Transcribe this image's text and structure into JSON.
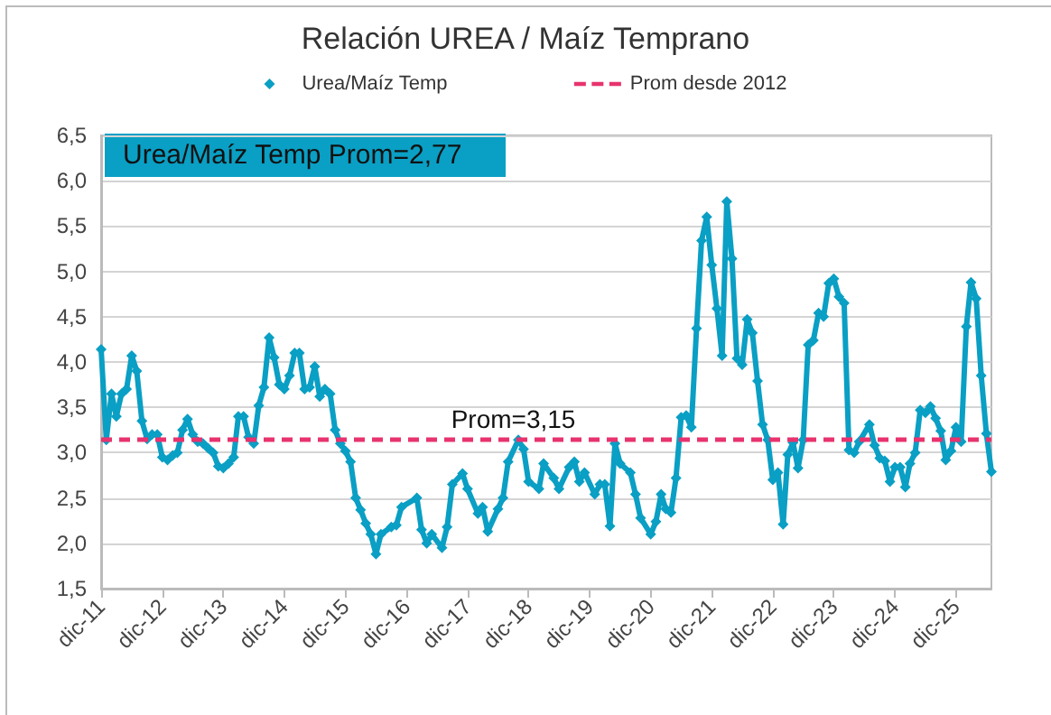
{
  "chart_data": {
    "type": "line",
    "title": "Relación UREA / Maíz Temprano",
    "x": [
      "2011-12",
      "2012-01",
      "2012-02",
      "2012-03",
      "2012-04",
      "2012-05",
      "2012-06",
      "2012-07",
      "2012-08",
      "2012-09",
      "2012-10",
      "2012-11",
      "2012-12",
      "2013-01",
      "2013-02",
      "2013-03",
      "2013-04",
      "2013-05",
      "2013-06",
      "2013-07",
      "2013-08",
      "2013-09",
      "2013-10",
      "2013-11",
      "2013-12",
      "2014-01",
      "2014-02",
      "2014-03",
      "2014-04",
      "2014-05",
      "2014-06",
      "2014-07",
      "2014-08",
      "2014-09",
      "2014-10",
      "2014-11",
      "2014-12",
      "2015-01",
      "2015-02",
      "2015-03",
      "2015-04",
      "2015-05",
      "2015-06",
      "2015-07",
      "2015-08",
      "2015-09",
      "2015-10",
      "2015-11",
      "2015-12",
      "2016-01",
      "2016-02",
      "2016-03",
      "2016-04",
      "2016-05",
      "2016-06",
      "2016-07",
      "2016-09",
      "2016-10",
      "2016-11",
      "2017-02",
      "2017-03",
      "2017-04",
      "2017-05",
      "2017-07",
      "2017-08",
      "2017-09",
      "2017-11",
      "2017-12",
      "2018-02",
      "2018-03",
      "2018-04",
      "2018-06",
      "2018-07",
      "2018-08",
      "2018-10",
      "2018-11",
      "2018-12",
      "2019-02",
      "2019-03",
      "2019-05",
      "2019-06",
      "2019-08",
      "2019-09",
      "2019-10",
      "2019-11",
      "2020-01",
      "2020-02",
      "2020-03",
      "2020-04",
      "2020-05",
      "2020-06",
      "2020-08",
      "2020-09",
      "2020-10",
      "2020-12",
      "2021-01",
      "2021-02",
      "2021-03",
      "2021-04",
      "2021-05",
      "2021-06",
      "2021-07",
      "2021-08",
      "2021-09",
      "2021-10",
      "2021-11",
      "2021-12",
      "2022-01",
      "2022-02",
      "2022-03",
      "2022-04",
      "2022-05",
      "2022-06",
      "2022-07",
      "2022-08",
      "2022-09",
      "2022-10",
      "2022-11",
      "2022-12",
      "2023-01",
      "2023-02",
      "2023-03",
      "2023-04",
      "2023-05",
      "2023-06",
      "2023-07",
      "2023-08",
      "2023-09",
      "2023-10",
      "2023-11",
      "2023-12",
      "2024-01",
      "2024-02",
      "2024-03",
      "2024-04",
      "2024-05",
      "2024-07",
      "2024-08",
      "2024-09",
      "2024-10",
      "2024-11",
      "2024-12",
      "2025-01",
      "2025-02",
      "2025-03",
      "2025-04",
      "2025-05",
      "2025-06",
      "2025-07",
      "2025-08",
      "2025-09",
      "2025-10",
      "2025-11",
      "2025-12",
      "2026-01",
      "2026-02",
      "2026-03",
      "2026-04",
      "2026-05",
      "2026-06",
      "2026-07"
    ],
    "series": [
      {
        "name": "Urea/Maíz Temp",
        "color": "#0a9fc4",
        "values": [
          4.14,
          3.14,
          3.65,
          3.4,
          3.65,
          3.7,
          4.07,
          3.9,
          3.35,
          3.15,
          3.2,
          3.2,
          2.95,
          2.92,
          2.97,
          3.0,
          3.25,
          3.37,
          3.2,
          3.12,
          3.1,
          3.05,
          3.0,
          2.85,
          2.83,
          2.88,
          2.95,
          3.4,
          3.4,
          3.17,
          3.1,
          3.52,
          3.72,
          4.27,
          4.05,
          3.75,
          3.7,
          3.85,
          4.1,
          4.1,
          3.7,
          3.72,
          3.95,
          3.62,
          3.7,
          3.65,
          3.25,
          3.1,
          3.02,
          2.9,
          2.5,
          2.37,
          2.22,
          2.1,
          1.88,
          2.1,
          2.18,
          2.2,
          2.4,
          2.5,
          2.15,
          2.0,
          2.1,
          1.95,
          2.18,
          2.65,
          2.77,
          2.6,
          2.33,
          2.4,
          2.13,
          2.38,
          2.5,
          2.9,
          3.14,
          3.04,
          2.68,
          2.6,
          2.88,
          2.72,
          2.6,
          2.84,
          2.9,
          2.68,
          2.78,
          2.54,
          2.65,
          2.65,
          2.19,
          3.1,
          2.88,
          2.78,
          2.54,
          2.28,
          2.1,
          2.24,
          2.54,
          2.38,
          2.34,
          2.72,
          3.39,
          3.41,
          3.28,
          4.37,
          5.34,
          5.6,
          5.07,
          4.59,
          4.07,
          5.77,
          5.14,
          4.04,
          3.97,
          4.47,
          4.32,
          3.79,
          3.31,
          3.14,
          2.7,
          2.78,
          2.21,
          2.98,
          3.11,
          2.83,
          3.14,
          4.19,
          4.24,
          4.54,
          4.5,
          4.87,
          4.92,
          4.72,
          4.65,
          3.03,
          3.0,
          3.12,
          3.31,
          3.08,
          2.94,
          2.91,
          2.68,
          2.84,
          2.84,
          2.62,
          2.88,
          3.0,
          3.47,
          3.44,
          3.51,
          3.38,
          3.24,
          2.92,
          3.02,
          3.28,
          3.12,
          4.39,
          4.88,
          4.7,
          3.85,
          3.21,
          2.79
        ]
      }
    ],
    "xlim": [
      "2011-12",
      "2026-07"
    ],
    "xticks": [
      {
        "value": "2011-12",
        "label": "dic-11"
      },
      {
        "value": "2012-12",
        "label": "dic-12"
      },
      {
        "value": "2013-12",
        "label": "dic-13"
      },
      {
        "value": "2014-12",
        "label": "dic-14"
      },
      {
        "value": "2015-12",
        "label": "dic-15"
      },
      {
        "value": "2016-12",
        "label": "dic-16"
      },
      {
        "value": "2017-12",
        "label": "dic-17"
      },
      {
        "value": "2018-12",
        "label": "dic-18"
      },
      {
        "value": "2019-12",
        "label": "dic-19"
      },
      {
        "value": "2020-12",
        "label": "dic-20"
      },
      {
        "value": "2021-12",
        "label": "dic-21"
      },
      {
        "value": "2022-12",
        "label": "dic-22"
      },
      {
        "value": "2023-12",
        "label": "dic-23"
      },
      {
        "value": "2024-12",
        "label": "dic-24"
      },
      {
        "value": "2025-12",
        "label": "dic-25"
      }
    ],
    "ylim": [
      1.5,
      6.5
    ],
    "yticks": [
      {
        "value": 1.5,
        "label": "1,5"
      },
      {
        "value": 2,
        "label": "2,0"
      },
      {
        "value": 2.5,
        "label": "2,5"
      },
      {
        "value": 3,
        "label": "3,0"
      },
      {
        "value": 3.5,
        "label": "3,5"
      },
      {
        "value": 4,
        "label": "4,0"
      },
      {
        "value": 4.5,
        "label": "4,5"
      },
      {
        "value": 5,
        "label": "5,0"
      },
      {
        "value": 5.5,
        "label": "5,5"
      },
      {
        "value": 6,
        "label": "6,0"
      },
      {
        "value": 6.5,
        "label": "6,5"
      }
    ],
    "ref_lines": [
      {
        "axis": "y",
        "value": 3.15,
        "label": "Prom desde 2012",
        "color": "#e8336e",
        "line_style": "dashed"
      }
    ],
    "annotations": [
      "Urea/Maíz Temp Prom=2,77",
      {
        "text": "Prom=3,15",
        "x": "2018-09",
        "y": 3.15
      }
    ],
    "grid": "y",
    "legend": "top",
    "marker": "diamond",
    "line_style": "solid"
  }
}
